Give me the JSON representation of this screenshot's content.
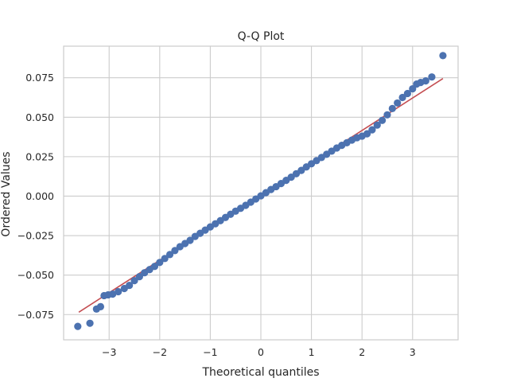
{
  "chart_data": {
    "type": "scatter",
    "title": "Q-Q Plot",
    "xlabel": "Theoretical quantiles",
    "ylabel": "Ordered Values",
    "xlim": [
      -3.9,
      3.9
    ],
    "ylim": [
      -0.091,
      0.095
    ],
    "xticks": [
      -3,
      -2,
      -1,
      0,
      1,
      2,
      3
    ],
    "xtick_labels": [
      "−3",
      "−2",
      "−1",
      "0",
      "1",
      "2",
      "3"
    ],
    "yticks": [
      -0.075,
      -0.05,
      -0.025,
      0.0,
      0.025,
      0.05,
      0.075
    ],
    "ytick_labels": [
      "−0.075",
      "−0.050",
      "−0.025",
      "0.000",
      "0.025",
      "0.050",
      "0.075"
    ],
    "grid": true,
    "points": [
      [
        -3.62,
        -0.0825
      ],
      [
        -3.38,
        -0.0805
      ],
      [
        -3.25,
        -0.0715
      ],
      [
        -3.17,
        -0.07
      ],
      [
        -3.1,
        -0.063
      ],
      [
        -3.02,
        -0.0625
      ],
      [
        -2.93,
        -0.062
      ],
      [
        -2.82,
        -0.0605
      ],
      [
        -2.7,
        -0.0585
      ],
      [
        -2.6,
        -0.0565
      ],
      [
        -2.5,
        -0.0535
      ],
      [
        -2.4,
        -0.051
      ],
      [
        -2.3,
        -0.0485
      ],
      [
        -2.2,
        -0.0465
      ],
      [
        -2.1,
        -0.0445
      ],
      [
        -2.0,
        -0.042
      ],
      [
        -1.9,
        -0.0395
      ],
      [
        -1.8,
        -0.037
      ],
      [
        -1.7,
        -0.0345
      ],
      [
        -1.6,
        -0.032
      ],
      [
        -1.5,
        -0.03
      ],
      [
        -1.4,
        -0.028
      ],
      [
        -1.3,
        -0.0255
      ],
      [
        -1.2,
        -0.0235
      ],
      [
        -1.1,
        -0.0215
      ],
      [
        -1.0,
        -0.0195
      ],
      [
        -0.9,
        -0.0175
      ],
      [
        -0.8,
        -0.0155
      ],
      [
        -0.7,
        -0.0135
      ],
      [
        -0.6,
        -0.0115
      ],
      [
        -0.5,
        -0.0095
      ],
      [
        -0.4,
        -0.0077
      ],
      [
        -0.3,
        -0.0058
      ],
      [
        -0.2,
        -0.0038
      ],
      [
        -0.1,
        -0.0018
      ],
      [
        0.0,
        0.0002
      ],
      [
        0.1,
        0.0022
      ],
      [
        0.2,
        0.0042
      ],
      [
        0.3,
        0.006
      ],
      [
        0.4,
        0.008
      ],
      [
        0.5,
        0.01
      ],
      [
        0.6,
        0.012
      ],
      [
        0.7,
        0.0142
      ],
      [
        0.8,
        0.0163
      ],
      [
        0.9,
        0.0185
      ],
      [
        1.0,
        0.0205
      ],
      [
        1.1,
        0.0225
      ],
      [
        1.2,
        0.0245
      ],
      [
        1.3,
        0.0265
      ],
      [
        1.4,
        0.0285
      ],
      [
        1.5,
        0.0305
      ],
      [
        1.6,
        0.0322
      ],
      [
        1.7,
        0.0338
      ],
      [
        1.8,
        0.0355
      ],
      [
        1.9,
        0.037
      ],
      [
        2.0,
        0.038
      ],
      [
        2.1,
        0.0395
      ],
      [
        2.2,
        0.042
      ],
      [
        2.3,
        0.045
      ],
      [
        2.4,
        0.048
      ],
      [
        2.5,
        0.0515
      ],
      [
        2.6,
        0.0555
      ],
      [
        2.7,
        0.059
      ],
      [
        2.8,
        0.0625
      ],
      [
        2.9,
        0.065
      ],
      [
        3.0,
        0.068
      ],
      [
        3.08,
        0.071
      ],
      [
        3.16,
        0.072
      ],
      [
        3.26,
        0.073
      ],
      [
        3.38,
        0.0755
      ],
      [
        3.6,
        0.089
      ]
    ],
    "line": {
      "x": [
        -3.6,
        3.6
      ],
      "y": [
        -0.0735,
        0.0745
      ]
    },
    "colors": {
      "points": "#4c72b0",
      "line": "#c44e52",
      "grid": "#cccccc",
      "spine": "#cccccc"
    }
  }
}
